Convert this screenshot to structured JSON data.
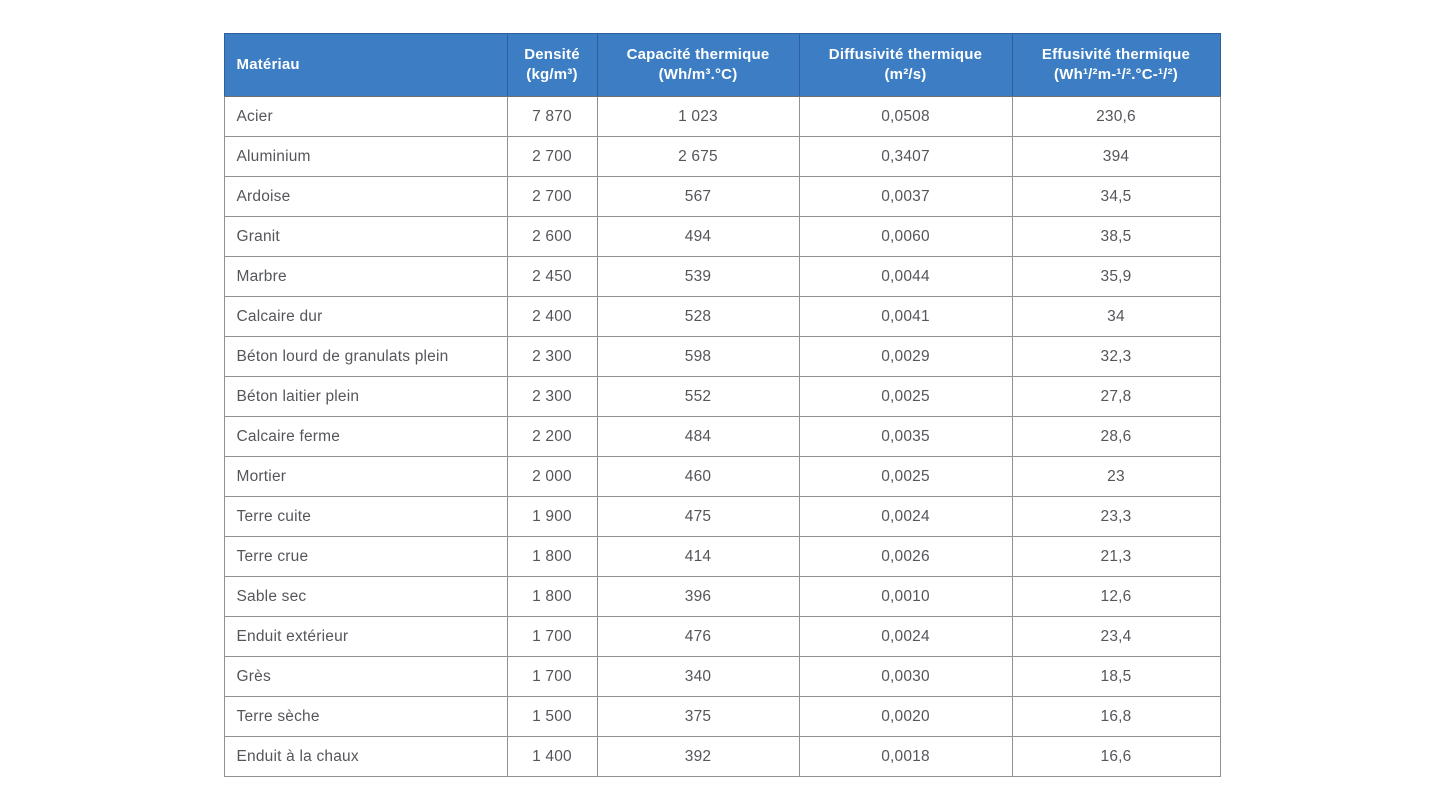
{
  "table": {
    "columns": [
      {
        "label": "Matériau",
        "unit": ""
      },
      {
        "label": "Densité",
        "unit": "(kg/m³)"
      },
      {
        "label": "Capacité thermique",
        "unit": "(Wh/m³.°C)"
      },
      {
        "label": "Diffusivité thermique",
        "unit": "(m²/s)"
      },
      {
        "label": "Effusivité thermique",
        "unit": "(Wh¹/²m-¹/².°C-¹/²)"
      }
    ],
    "rows": [
      [
        "Acier",
        "7 870",
        "1 023",
        "0,0508",
        "230,6"
      ],
      [
        "Aluminium",
        "2 700",
        "2 675",
        "0,3407",
        "394"
      ],
      [
        "Ardoise",
        "2 700",
        "567",
        "0,0037",
        "34,5"
      ],
      [
        "Granit",
        "2 600",
        "494",
        "0,0060",
        "38,5"
      ],
      [
        "Marbre",
        "2 450",
        "539",
        "0,0044",
        "35,9"
      ],
      [
        "Calcaire dur",
        "2 400",
        "528",
        "0,0041",
        "34"
      ],
      [
        "Béton lourd de granulats plein",
        "2 300",
        "598",
        "0,0029",
        "32,3"
      ],
      [
        "Béton laitier plein",
        "2 300",
        "552",
        "0,0025",
        "27,8"
      ],
      [
        "Calcaire ferme",
        "2 200",
        "484",
        "0,0035",
        "28,6"
      ],
      [
        "Mortier",
        "2 000",
        "460",
        "0,0025",
        "23"
      ],
      [
        "Terre cuite",
        "1 900",
        "475",
        "0,0024",
        "23,3"
      ],
      [
        "Terre crue",
        "1 800",
        "414",
        "0,0026",
        "21,3"
      ],
      [
        "Sable sec",
        "1 800",
        "396",
        "0,0010",
        "12,6"
      ],
      [
        "Enduit extérieur",
        "1 700",
        "476",
        "0,0024",
        "23,4"
      ],
      [
        "Grès",
        "1 700",
        "340",
        "0,0030",
        "18,5"
      ],
      [
        "Terre sèche",
        "1 500",
        "375",
        "0,0020",
        "16,8"
      ],
      [
        "Enduit à la chaux",
        "1 400",
        "392",
        "0,0018",
        "16,6"
      ]
    ]
  },
  "colors": {
    "header_bg": "#3c7dc4",
    "header_text": "#ffffff",
    "header_border": "#2c5f9b",
    "body_border": "#919191",
    "body_text": "#54565b"
  }
}
